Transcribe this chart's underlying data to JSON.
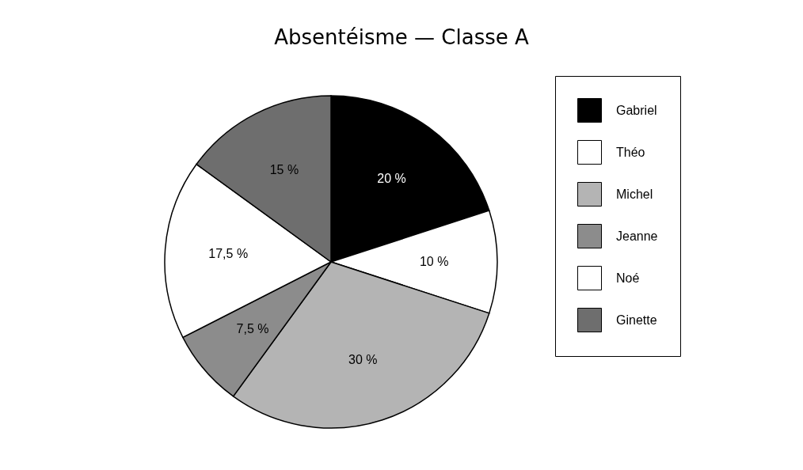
{
  "chart_data": {
    "type": "pie",
    "title": "Absentéisme — Classe A",
    "categories": [
      "Gabriel",
      "Théo",
      "Michel",
      "Jeanne",
      "Noé",
      "Ginette"
    ],
    "values": [
      20,
      10,
      30,
      7.5,
      17.5,
      15
    ],
    "colors": [
      "#000000",
      "#ffffff",
      "#b4b4b4",
      "#8c8c8c",
      "#ffffff",
      "#6e6e6e"
    ],
    "value_labels": [
      "20 %",
      "10 %",
      "30 %",
      "7,5 %",
      "17,5 %",
      "15 %"
    ],
    "legend": "right"
  }
}
